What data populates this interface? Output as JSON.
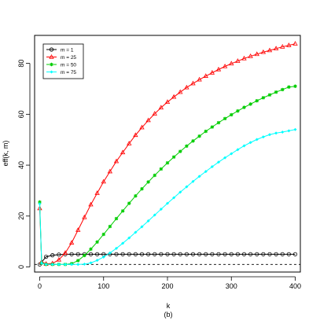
{
  "caption": "(b)",
  "chart_data": {
    "type": "line",
    "title": "",
    "xlabel": "k",
    "ylabel": "eff(k, m)",
    "xlim": [
      -8,
      408
    ],
    "ylim": [
      -2,
      91
    ],
    "xticks": [
      0,
      100,
      200,
      300,
      400
    ],
    "yticks": [
      0,
      20,
      40,
      60,
      80
    ],
    "grid": false,
    "legend": {
      "placement": "top-left"
    },
    "reference_line": {
      "y": 1,
      "style": "dashed",
      "color": "#000000"
    },
    "series": [
      {
        "name": "m = 1",
        "color": "#000000",
        "marker": "circle-open",
        "points": [
          [
            0,
            1.0
          ],
          [
            10,
            4.0
          ],
          [
            20,
            4.6
          ],
          [
            30,
            4.85
          ],
          [
            40,
            5.0
          ],
          [
            50,
            5.0
          ],
          [
            60,
            5.0
          ],
          [
            70,
            5.0
          ],
          [
            80,
            5.0
          ],
          [
            90,
            5.0
          ],
          [
            100,
            5.0
          ],
          [
            110,
            5.0
          ],
          [
            120,
            5.0
          ],
          [
            130,
            5.0
          ],
          [
            140,
            5.0
          ],
          [
            150,
            5.0
          ],
          [
            160,
            5.0
          ],
          [
            170,
            5.0
          ],
          [
            180,
            5.0
          ],
          [
            190,
            5.0
          ],
          [
            200,
            5.0
          ],
          [
            210,
            5.0
          ],
          [
            220,
            5.0
          ],
          [
            230,
            5.0
          ],
          [
            240,
            5.0
          ],
          [
            250,
            5.0
          ],
          [
            260,
            5.0
          ],
          [
            270,
            5.0
          ],
          [
            280,
            5.0
          ],
          [
            290,
            5.0
          ],
          [
            300,
            5.0
          ],
          [
            310,
            5.0
          ],
          [
            320,
            5.0
          ],
          [
            330,
            5.0
          ],
          [
            340,
            5.0
          ],
          [
            350,
            5.0
          ],
          [
            360,
            5.0
          ],
          [
            370,
            5.0
          ],
          [
            380,
            5.0
          ],
          [
            390,
            5.0
          ],
          [
            400,
            5.0
          ]
        ]
      },
      {
        "name": "m = 25",
        "color": "#ff0000",
        "marker": "triangle-open",
        "points": [
          [
            0,
            23.0
          ],
          [
            3,
            2.0
          ],
          [
            10,
            1.2
          ],
          [
            20,
            1.4
          ],
          [
            30,
            2.8
          ],
          [
            40,
            5.5
          ],
          [
            50,
            9.5
          ],
          [
            60,
            14.5
          ],
          [
            70,
            19.5
          ],
          [
            80,
            24.5
          ],
          [
            90,
            29.0
          ],
          [
            100,
            33.5
          ],
          [
            110,
            37.5
          ],
          [
            120,
            41.5
          ],
          [
            130,
            45.0
          ],
          [
            140,
            48.5
          ],
          [
            150,
            51.8
          ],
          [
            160,
            54.8
          ],
          [
            170,
            57.6
          ],
          [
            180,
            60.2
          ],
          [
            190,
            62.6
          ],
          [
            200,
            64.8
          ],
          [
            210,
            66.8
          ],
          [
            220,
            68.7
          ],
          [
            230,
            70.5
          ],
          [
            240,
            72.1
          ],
          [
            250,
            73.6
          ],
          [
            260,
            75.0
          ],
          [
            270,
            76.3
          ],
          [
            280,
            77.6
          ],
          [
            290,
            78.8
          ],
          [
            300,
            79.9
          ],
          [
            310,
            80.9
          ],
          [
            320,
            81.9
          ],
          [
            330,
            82.8
          ],
          [
            340,
            83.6
          ],
          [
            350,
            84.4
          ],
          [
            360,
            85.1
          ],
          [
            370,
            85.8
          ],
          [
            380,
            86.5
          ],
          [
            390,
            87.1
          ],
          [
            400,
            87.7
          ]
        ]
      },
      {
        "name": "m = 50",
        "color": "#00cd00",
        "marker": "asterisk",
        "points": [
          [
            0,
            25.5
          ],
          [
            3,
            1.5
          ],
          [
            10,
            1.0
          ],
          [
            20,
            1.0
          ],
          [
            30,
            1.0
          ],
          [
            40,
            1.0
          ],
          [
            50,
            1.3
          ],
          [
            60,
            2.5
          ],
          [
            70,
            4.5
          ],
          [
            80,
            7.0
          ],
          [
            90,
            9.8
          ],
          [
            100,
            12.8
          ],
          [
            110,
            15.9
          ],
          [
            120,
            19.0
          ],
          [
            130,
            22.0
          ],
          [
            140,
            25.0
          ],
          [
            150,
            27.9
          ],
          [
            160,
            30.7
          ],
          [
            170,
            33.4
          ],
          [
            180,
            36.0
          ],
          [
            190,
            38.5
          ],
          [
            200,
            40.9
          ],
          [
            210,
            43.2
          ],
          [
            220,
            45.4
          ],
          [
            230,
            47.5
          ],
          [
            240,
            49.5
          ],
          [
            250,
            51.4
          ],
          [
            260,
            53.3
          ],
          [
            270,
            55.0
          ],
          [
            280,
            56.7
          ],
          [
            290,
            58.3
          ],
          [
            300,
            59.8
          ],
          [
            310,
            61.3
          ],
          [
            320,
            62.7
          ],
          [
            330,
            64.0
          ],
          [
            340,
            65.3
          ],
          [
            350,
            66.5
          ],
          [
            360,
            67.6
          ],
          [
            370,
            68.7
          ],
          [
            380,
            69.7
          ],
          [
            390,
            70.7
          ],
          [
            400,
            71.0
          ]
        ]
      },
      {
        "name": "m = 75",
        "color": "#00ffff",
        "marker": "diamond-filled",
        "points": [
          [
            0,
            24.8
          ],
          [
            3,
            1.5
          ],
          [
            10,
            1.0
          ],
          [
            20,
            1.0
          ],
          [
            30,
            1.0
          ],
          [
            40,
            1.0
          ],
          [
            50,
            1.0
          ],
          [
            60,
            1.0
          ],
          [
            70,
            1.1
          ],
          [
            80,
            1.6
          ],
          [
            90,
            2.6
          ],
          [
            100,
            3.9
          ],
          [
            110,
            5.5
          ],
          [
            120,
            7.3
          ],
          [
            130,
            9.3
          ],
          [
            140,
            11.4
          ],
          [
            150,
            13.6
          ],
          [
            160,
            15.8
          ],
          [
            170,
            18.1
          ],
          [
            180,
            20.4
          ],
          [
            190,
            22.7
          ],
          [
            200,
            25.0
          ],
          [
            210,
            27.2
          ],
          [
            220,
            29.4
          ],
          [
            230,
            31.5
          ],
          [
            240,
            33.6
          ],
          [
            250,
            35.6
          ],
          [
            260,
            37.5
          ],
          [
            270,
            39.4
          ],
          [
            280,
            41.2
          ],
          [
            290,
            42.9
          ],
          [
            300,
            44.5
          ],
          [
            310,
            46.1
          ],
          [
            320,
            47.6
          ],
          [
            330,
            48.9
          ],
          [
            340,
            50.1
          ],
          [
            350,
            51.1
          ],
          [
            360,
            52.0
          ],
          [
            370,
            52.6
          ],
          [
            380,
            53.0
          ],
          [
            390,
            53.5
          ],
          [
            400,
            54.0
          ]
        ]
      }
    ]
  }
}
